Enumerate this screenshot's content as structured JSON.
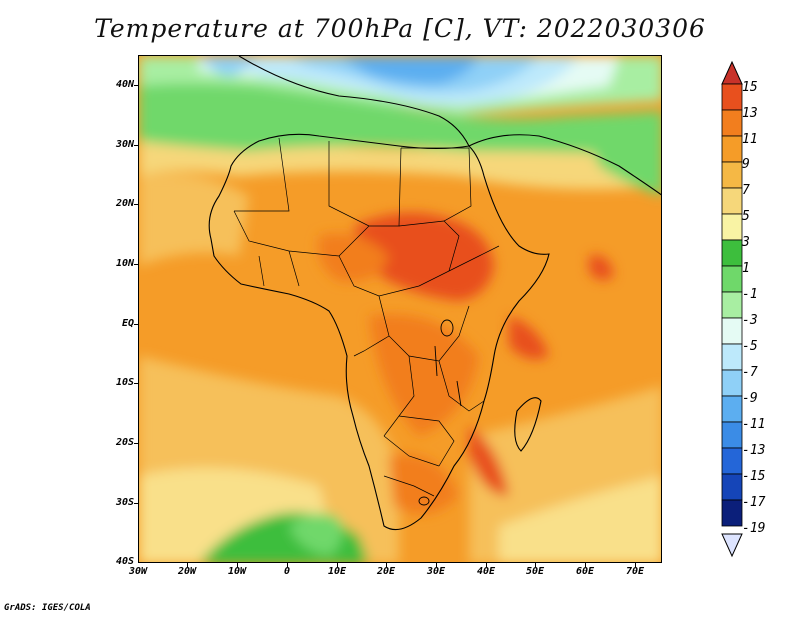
{
  "title": "Temperature at 700hPa [C], VT: 2022030306",
  "credit": "GrADS: IGES/COLA",
  "lat_labels": [
    "40N",
    "30N",
    "20N",
    "10N",
    "EQ",
    "10S",
    "20S",
    "30S",
    "40S"
  ],
  "lon_labels": [
    "30W",
    "20W",
    "10W",
    "0",
    "10E",
    "20E",
    "30E",
    "40E",
    "50E",
    "60E",
    "70E"
  ],
  "colorbar": {
    "levels": [
      "15",
      "13",
      "11",
      "9",
      "7",
      "5",
      "3",
      "1",
      "-1",
      "-3",
      "-5",
      "-7",
      "-9",
      "-11",
      "-13",
      "-15",
      "-17",
      "-19"
    ],
    "colors": [
      "#c8322a",
      "#e8501e",
      "#f27e1e",
      "#f59c28",
      "#f5b845",
      "#f6d77a",
      "#f9f3a4",
      "#3dbe3d",
      "#6fd86a",
      "#a8eea2",
      "#e5fbf4",
      "#bde9fb",
      "#8fd0f7",
      "#5caef0",
      "#3b8ce6",
      "#2466d8",
      "#1545b8",
      "#0b1f7a"
    ]
  }
}
